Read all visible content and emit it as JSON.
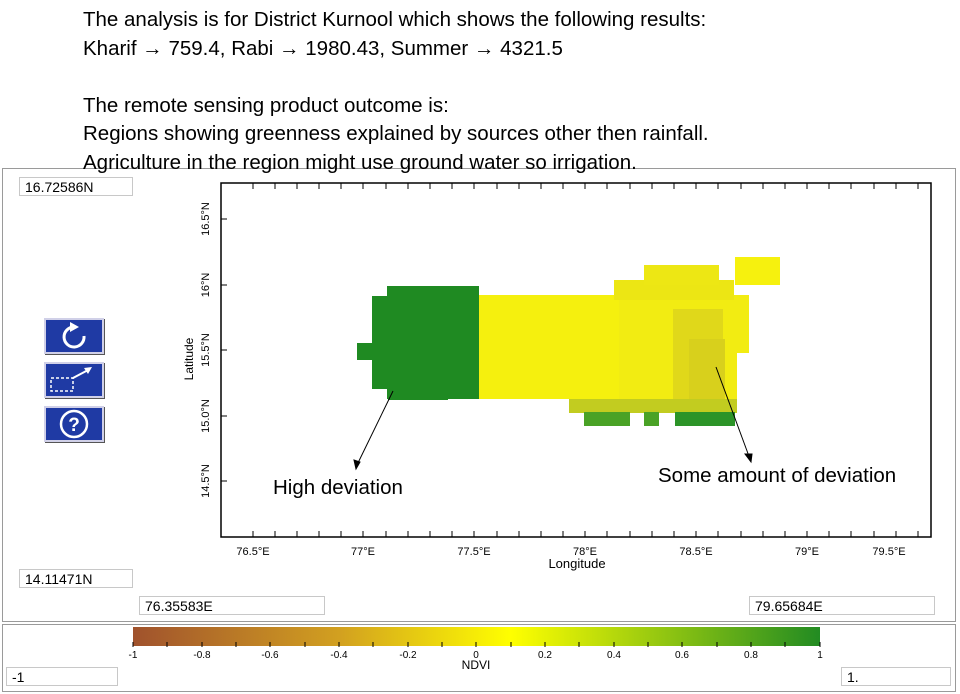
{
  "header": {
    "line1": "The analysis is for District Kurnool which shows the following results:",
    "line2_items": [
      {
        "label": "Kharif",
        "value": "759.4"
      },
      {
        "label": "Rabi",
        "value": "1980.43"
      },
      {
        "label": "Summer",
        "value": "4321.5"
      }
    ],
    "line3": "The remote sensing product outcome is:",
    "line4": "Regions showing greenness explained by sources other then rainfall.",
    "line5": "Agriculture in the region might use ground water so irrigation."
  },
  "map": {
    "lat_max": "16.72586N",
    "lat_min": "14.11471N",
    "lon_min": "76.35583E",
    "lon_max": "79.65684E",
    "y_axis_label": "Latitude",
    "x_axis_label": "Longitude",
    "x_ticks": [
      "76.5°E",
      "77°E",
      "77.5°E",
      "78°E",
      "78.5°E",
      "79°E",
      "79.5°E"
    ],
    "y_ticks": [
      "16.5°N",
      "16°N",
      "15.5°N",
      "15.0°N",
      "14.5°N"
    ],
    "annotations": {
      "left": "High deviation",
      "right": "Some amount of deviation"
    },
    "colors": {
      "high_deviation": "#1f8a22",
      "some_deviation": "#e8e018",
      "yellow": "#f5f00e"
    }
  },
  "toolbar": {
    "buttons": [
      {
        "name": "reset-view",
        "icon": "refresh-icon"
      },
      {
        "name": "zoom",
        "icon": "zoom-arrow-icon"
      },
      {
        "name": "help",
        "icon": "help-icon"
      }
    ]
  },
  "legend": {
    "title": "NDVI",
    "ticks": [
      "-1",
      "-0.8",
      "-0.6",
      "-0.4",
      "-0.2",
      "0",
      "0.2",
      "0.4",
      "0.6",
      "0.8",
      "1"
    ],
    "min_value": "-1",
    "max_value": "1.",
    "colors": [
      "#a0522d",
      "#d2a020",
      "#ffff00",
      "#228b22"
    ]
  }
}
